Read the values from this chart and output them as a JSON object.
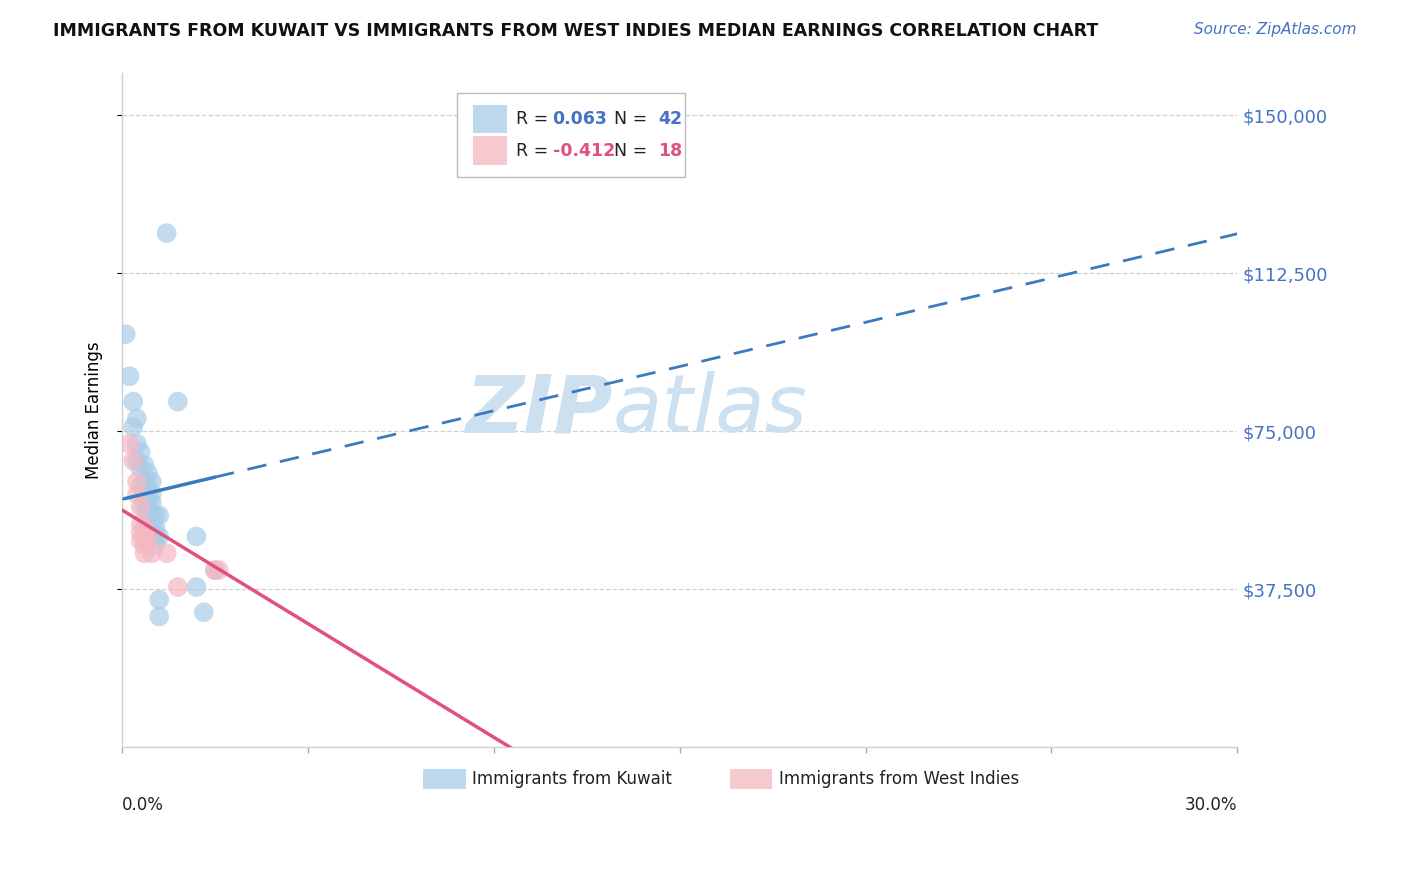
{
  "title": "IMMIGRANTS FROM KUWAIT VS IMMIGRANTS FROM WEST INDIES MEDIAN EARNINGS CORRELATION CHART",
  "source": "Source: ZipAtlas.com",
  "ylabel": "Median Earnings",
  "y_ticks": [
    37500,
    75000,
    112500,
    150000
  ],
  "y_tick_labels": [
    "$37,500",
    "$75,000",
    "$112,500",
    "$150,000"
  ],
  "xlim": [
    0.0,
    0.3
  ],
  "ylim": [
    0,
    160000
  ],
  "r_blue": 0.063,
  "n_blue": 42,
  "r_pink": -0.412,
  "n_pink": 18,
  "blue_color": "#a8cce8",
  "pink_color": "#f4b8c1",
  "blue_line_color": "#3a7abf",
  "pink_line_color": "#e05080",
  "blue_scatter": [
    [
      0.001,
      98000
    ],
    [
      0.002,
      88000
    ],
    [
      0.003,
      82000
    ],
    [
      0.003,
      76000
    ],
    [
      0.004,
      78000
    ],
    [
      0.004,
      72000
    ],
    [
      0.004,
      68000
    ],
    [
      0.005,
      70000
    ],
    [
      0.005,
      66000
    ],
    [
      0.005,
      62000
    ],
    [
      0.006,
      67000
    ],
    [
      0.006,
      63000
    ],
    [
      0.006,
      59000
    ],
    [
      0.006,
      57000
    ],
    [
      0.007,
      65000
    ],
    [
      0.007,
      62000
    ],
    [
      0.007,
      60000
    ],
    [
      0.007,
      58000
    ],
    [
      0.007,
      56000
    ],
    [
      0.007,
      54000
    ],
    [
      0.007,
      52000
    ],
    [
      0.007,
      50000
    ],
    [
      0.008,
      63000
    ],
    [
      0.008,
      60000
    ],
    [
      0.008,
      58000
    ],
    [
      0.008,
      55000
    ],
    [
      0.008,
      53000
    ],
    [
      0.008,
      51000
    ],
    [
      0.009,
      55000
    ],
    [
      0.009,
      52000
    ],
    [
      0.009,
      50000
    ],
    [
      0.009,
      48000
    ],
    [
      0.01,
      55000
    ],
    [
      0.01,
      50000
    ],
    [
      0.01,
      35000
    ],
    [
      0.01,
      31000
    ],
    [
      0.012,
      122000
    ],
    [
      0.015,
      82000
    ],
    [
      0.02,
      50000
    ],
    [
      0.02,
      38000
    ],
    [
      0.022,
      32000
    ],
    [
      0.025,
      42000
    ]
  ],
  "pink_scatter": [
    [
      0.002,
      72000
    ],
    [
      0.003,
      68000
    ],
    [
      0.004,
      63000
    ],
    [
      0.004,
      60000
    ],
    [
      0.005,
      57000
    ],
    [
      0.005,
      53000
    ],
    [
      0.005,
      51000
    ],
    [
      0.005,
      49000
    ],
    [
      0.006,
      52000
    ],
    [
      0.006,
      50000
    ],
    [
      0.006,
      48000
    ],
    [
      0.006,
      46000
    ],
    [
      0.007,
      49000
    ],
    [
      0.008,
      46000
    ],
    [
      0.012,
      46000
    ],
    [
      0.015,
      38000
    ],
    [
      0.025,
      42000
    ],
    [
      0.026,
      42000
    ]
  ],
  "watermark_zip": "ZIP",
  "watermark_atlas": "atlas",
  "watermark_color": "#cce0f0",
  "background_color": "#ffffff",
  "grid_color": "#d0d0d0"
}
